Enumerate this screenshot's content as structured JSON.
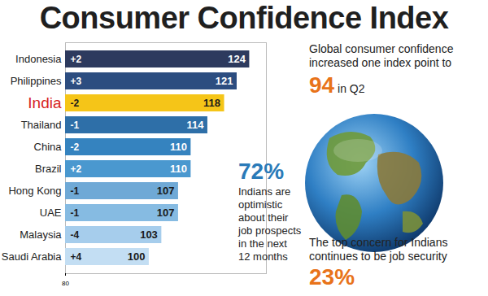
{
  "chart_data": {
    "type": "bar",
    "title": "Consumer Confidence Index",
    "orientation": "horizontal",
    "categories": [
      "Indonesia",
      "Philippines",
      "India",
      "Thailand",
      "China",
      "Brazil",
      "Hong Kong",
      "UAE",
      "Malaysia",
      "Saudi Arabia"
    ],
    "values": [
      124,
      121,
      118,
      114,
      110,
      110,
      107,
      107,
      103,
      100
    ],
    "changes": [
      "+2",
      "+3",
      "-2",
      "-1",
      "-2",
      "+2",
      "-1",
      "-1",
      "-4",
      "+4"
    ],
    "colors": [
      "#2d3a5e",
      "#2c4d80",
      "#f5c518",
      "#2e6fa8",
      "#3583bf",
      "#4a98cf",
      "#6fa9d6",
      "#86bbe2",
      "#a6cdec",
      "#c3def3"
    ],
    "data_labels": true,
    "xlim": [
      80,
      128
    ],
    "xticks": [
      80
    ],
    "annotations": {
      "global": {
        "text": "Global consumer confidence increased one index point to",
        "value": "94",
        "suffix": "in Q2"
      },
      "optimism": {
        "value": "72%",
        "text": "Indians are optimistic about their job prospects in the next 12 months"
      },
      "concern": {
        "text": "The top concern for Indians continues to be job security",
        "value": "23%"
      }
    }
  }
}
